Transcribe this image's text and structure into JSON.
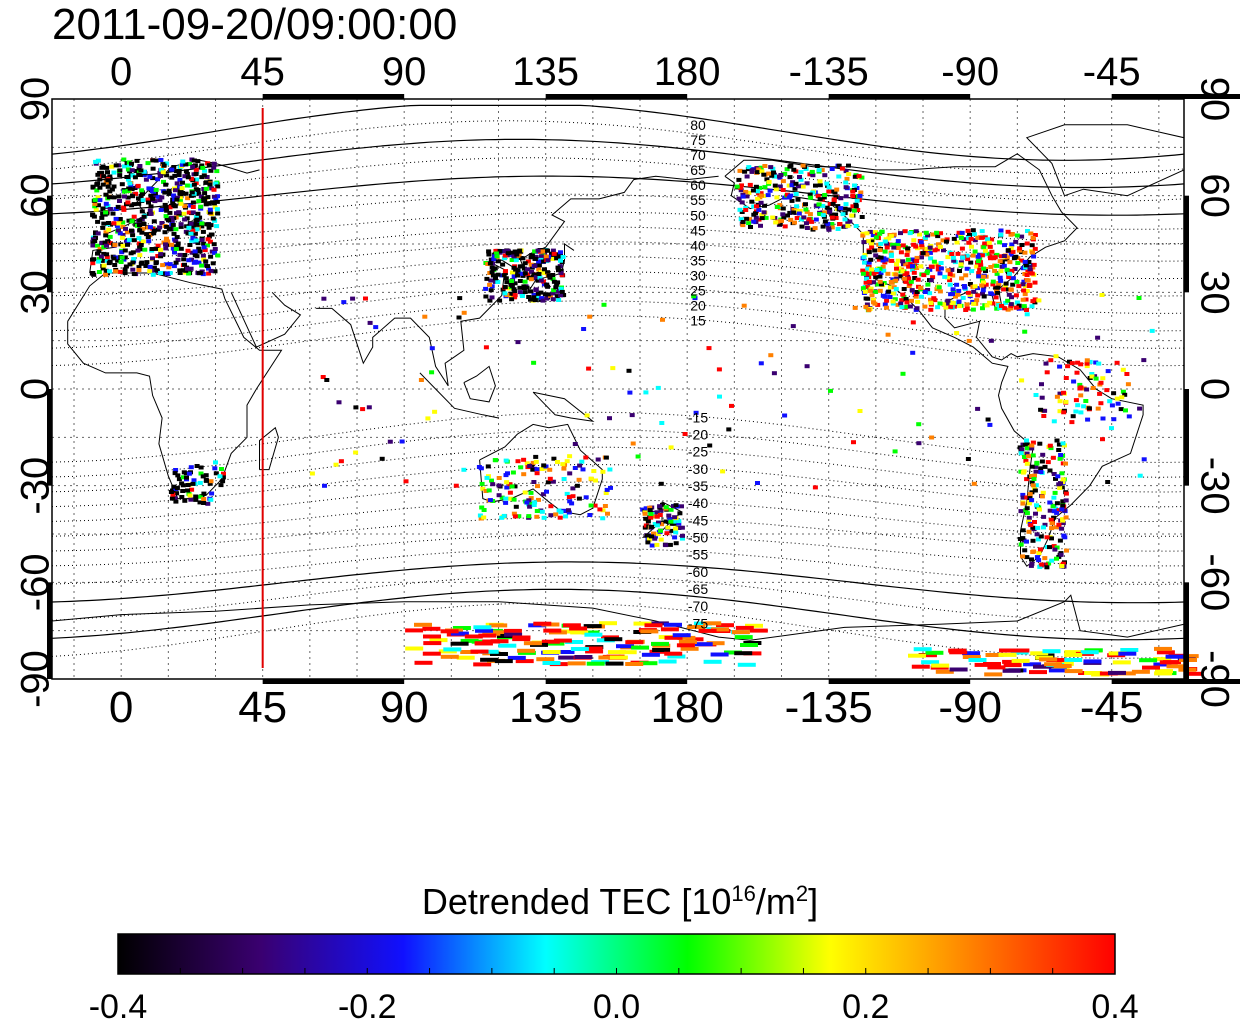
{
  "map": {
    "timestamp": "2011-09-20/09:00:00",
    "x_ticks_top": [
      "0",
      "45",
      "90",
      "135",
      "180",
      "-135",
      "-90",
      "-45"
    ],
    "x_ticks_bottom": [
      "0",
      "45",
      "90",
      "135",
      "180",
      "-135",
      "-90",
      "-45"
    ],
    "y_ticks_left": [
      "90",
      "60",
      "30",
      "0",
      "-30",
      "-60",
      "-90"
    ],
    "y_ticks_right": [
      "90",
      "60",
      "30",
      "0",
      "-30",
      "-60",
      "-90"
    ],
    "lon_range": [
      -22,
      338
    ],
    "lat_range": [
      -90,
      90
    ],
    "grid": true,
    "marker_line_lon": 45,
    "marker_line_color": "#e00000",
    "contour_labels": [
      "80",
      "75",
      "70",
      "65",
      "60",
      "55",
      "50",
      "45",
      "40",
      "35",
      "30",
      "25",
      "20",
      "15",
      "-15",
      "-20",
      "-25",
      "-30",
      "-35",
      "-40",
      "-45",
      "-50",
      "-55",
      "-60",
      "-65",
      "-70",
      "-75"
    ]
  },
  "colorbar": {
    "title_main": "Detrended TEC  [10",
    "title_exp1": "16",
    "title_mid": "/m",
    "title_exp2": "2",
    "title_end": "]",
    "min": -0.4,
    "max": 0.4,
    "tick_labels": [
      "-0.4",
      "-0.2",
      "0.0",
      "0.2",
      "0.4"
    ],
    "colors": [
      "#000000",
      "#3a0070",
      "#1010ff",
      "#00ffff",
      "#00ff00",
      "#ffff00",
      "#ff8000",
      "#ff0000"
    ]
  }
}
